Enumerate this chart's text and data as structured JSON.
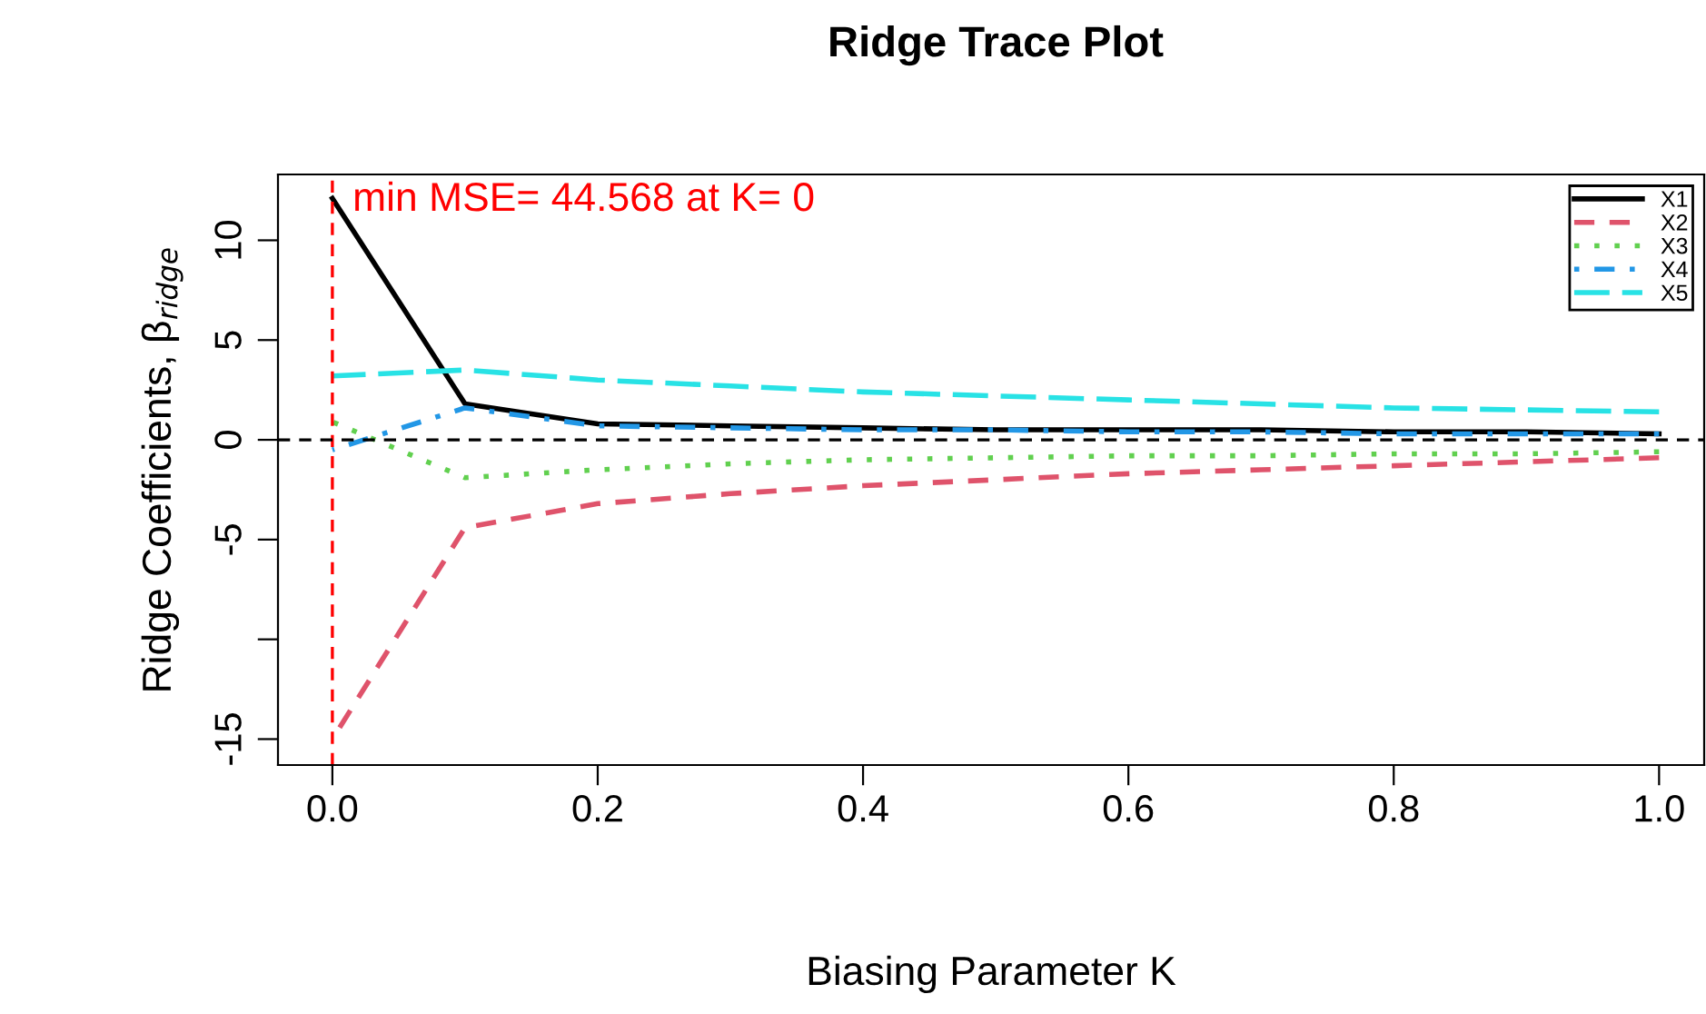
{
  "chart_data": {
    "type": "line",
    "title": "Ridge Trace Plot",
    "xlabel": "Biasing Parameter K",
    "ylabel": "Ridge Coefficients, β$_{ridge}$",
    "x": [
      0,
      0.1,
      0.2,
      0.3,
      0.4,
      0.5,
      0.6,
      0.7,
      0.8,
      0.9,
      1.0
    ],
    "series": [
      {
        "name": "X1",
        "color": "#000000",
        "line_style": "solid",
        "values": [
          12.1,
          1.8,
          0.8,
          0.7,
          0.6,
          0.5,
          0.5,
          0.5,
          0.4,
          0.4,
          0.3
        ]
      },
      {
        "name": "X2",
        "color": "#df536b",
        "line_style": "dashed",
        "values": [
          -15.0,
          -4.4,
          -3.2,
          -2.7,
          -2.3,
          -2.0,
          -1.7,
          -1.5,
          -1.3,
          -1.1,
          -0.9
        ]
      },
      {
        "name": "X3",
        "color": "#61d04f",
        "line_style": "dotted",
        "values": [
          0.9,
          -1.9,
          -1.5,
          -1.2,
          -1.0,
          -0.9,
          -0.8,
          -0.8,
          -0.7,
          -0.7,
          -0.6
        ]
      },
      {
        "name": "X4",
        "color": "#2297e6",
        "line_style": "dashdot",
        "values": [
          -0.5,
          1.6,
          0.7,
          0.6,
          0.5,
          0.5,
          0.4,
          0.4,
          0.3,
          0.3,
          0.3
        ]
      },
      {
        "name": "X5",
        "color": "#28e2e5",
        "line_style": "longdash",
        "values": [
          3.2,
          3.5,
          3.0,
          2.7,
          2.4,
          2.2,
          2.0,
          1.8,
          1.6,
          1.5,
          1.4
        ]
      }
    ],
    "xlim": [
      -0.041,
      1.034
    ],
    "ylim": [
      -16.3,
      13.3
    ],
    "xticks": [
      {
        "value": 0,
        "label": "0.0"
      },
      0.2,
      0.4,
      0.6,
      0.8,
      {
        "value": 1.0,
        "label": "1.0"
      }
    ],
    "yticks": [
      {
        "value": -15,
        "label": "-15"
      },
      {
        "value": -10,
        "label": null
      },
      {
        "value": -5,
        "label": "-5"
      },
      0,
      5,
      10
    ],
    "ref_lines": [
      {
        "axis": "x",
        "value": 0,
        "color": "#ff0000",
        "line_style": "dashed"
      },
      {
        "axis": "y",
        "value": 0,
        "color": "#000000",
        "line_style": "dashed"
      }
    ],
    "annotations": [
      {
        "text": "min MSE= 44.568 at K= 0",
        "x": 0,
        "y": 12
      }
    ],
    "legend": "top right",
    "grid": false
  }
}
